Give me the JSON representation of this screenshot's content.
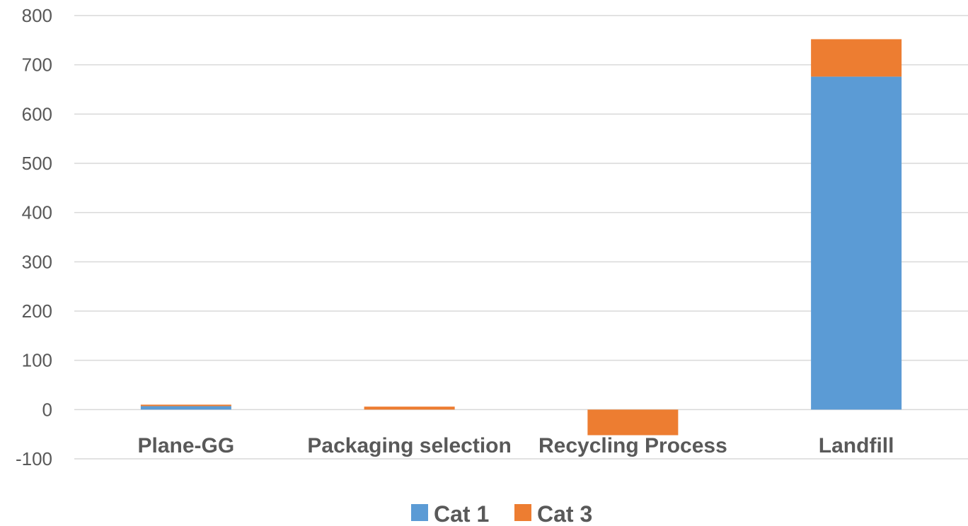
{
  "chart_data": {
    "type": "bar",
    "stacked": true,
    "title": "",
    "xlabel": "",
    "ylabel": "",
    "categories": [
      "Plane-GG",
      "Packaging selection",
      "Recycling Process",
      "Landfill"
    ],
    "series": [
      {
        "name": "Cat 1",
        "color": "#5b9bd5",
        "values": [
          7,
          0,
          0,
          676
        ]
      },
      {
        "name": "Cat 3",
        "color": "#ed7d31",
        "values": [
          3,
          6,
          -52,
          76
        ]
      }
    ],
    "ylim": [
      -100,
      800
    ],
    "yticks": [
      -100,
      0,
      100,
      200,
      300,
      400,
      500,
      600,
      700,
      800
    ],
    "grid": true,
    "legend_position": "bottom"
  }
}
